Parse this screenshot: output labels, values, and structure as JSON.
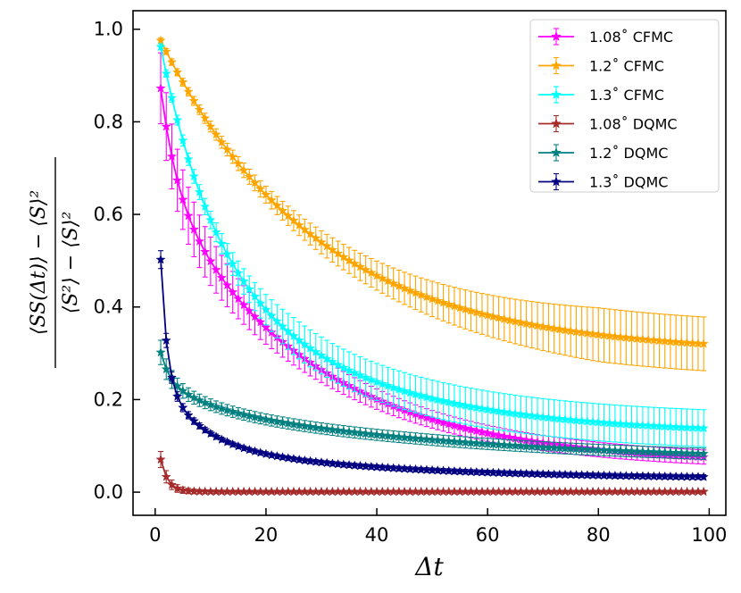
{
  "chart_data": {
    "type": "line",
    "title": "",
    "xlabel": "Δt",
    "ylabel": "⟨SS(Δt)⟩ − ⟨S⟩² / ⟨S²⟩ − ⟨S⟩²",
    "ylabel_numerator": "⟨SS(Δt)⟩ − ⟨S⟩²",
    "ylabel_denominator": "⟨S²⟩ − ⟨S⟩²",
    "xlim": [
      -4,
      103
    ],
    "ylim": [
      -0.05,
      1.04
    ],
    "x_ticks": [
      0,
      20,
      40,
      60,
      80,
      100
    ],
    "y_ticks": [
      0.0,
      0.2,
      0.4,
      0.6,
      0.8,
      1.0
    ],
    "x_tick_labels": [
      "0",
      "20",
      "40",
      "60",
      "80",
      "100"
    ],
    "y_tick_labels": [
      "0.0",
      "0.2",
      "0.4",
      "0.6",
      "0.8",
      "1.0"
    ],
    "grid": false,
    "legend_position": "top-right",
    "x_range": [
      1,
      99
    ],
    "series": [
      {
        "name": "1.08° CFMC",
        "legend_label": "1.08˚ CFMC",
        "color": "#ff00ff",
        "marker": "star",
        "model": {
          "kind": "exp2",
          "c": 0.06,
          "a1": 0.3,
          "t1": 3,
          "a2": 0.62,
          "t2": 27
        },
        "error_model": {
          "kind": "decay",
          "base": 0.015,
          "amp": 0.065,
          "tau": 18
        }
      },
      {
        "name": "1.2° CFMC",
        "legend_label": "1.2˚ CFMC",
        "color": "#ffa500",
        "marker": "star",
        "model": {
          "kind": "exp1",
          "c": 0.3,
          "a": 0.7,
          "t": 28
        },
        "error_model": {
          "kind": "ramp",
          "start": 0.005,
          "end": 0.058,
          "span": 80
        }
      },
      {
        "name": "1.3° CFMC",
        "legend_label": "1.3˚ CFMC",
        "color": "#00ffff",
        "marker": "star",
        "model": {
          "kind": "exp2",
          "c": 0.125,
          "a1": 0.45,
          "t1": 9,
          "a2": 0.45,
          "t2": 28
        },
        "error_model": {
          "kind": "ramp",
          "start": 0.005,
          "end": 0.04,
          "span": 25
        }
      },
      {
        "name": "1.08° DQMC",
        "legend_label": "1.08˚ DQMC",
        "color": "#a52a2a",
        "marker": "star",
        "model": {
          "kind": "exp1",
          "c": 0.001,
          "a": 0.15,
          "t": 1.3
        },
        "error_model": {
          "kind": "decay",
          "base": 0.003,
          "amp": 0.02,
          "tau": 3
        }
      },
      {
        "name": "1.2° DQMC",
        "legend_label": "1.2˚ DQMC",
        "color": "#008080",
        "marker": "star",
        "model": {
          "kind": "exp3",
          "c": 0.065,
          "a1": 0.11,
          "t1": 1.5,
          "a2": 0.06,
          "t2": 8,
          "a3": 0.13,
          "t3": 50
        },
        "error_model": {
          "kind": "decay",
          "base": 0.012,
          "amp": 0.02,
          "tau": 3
        }
      },
      {
        "name": "1.3° DQMC",
        "legend_label": "1.3˚ DQMC",
        "color": "#000080",
        "marker": "star",
        "model": {
          "kind": "exp3",
          "c": 0.028,
          "a1": 0.64,
          "t1": 1.1,
          "a2": 0.16,
          "t2": 7,
          "a3": 0.08,
          "t3": 35
        },
        "error_model": {
          "kind": "decay",
          "base": 0.005,
          "amp": 0.02,
          "tau": 3
        }
      }
    ]
  }
}
